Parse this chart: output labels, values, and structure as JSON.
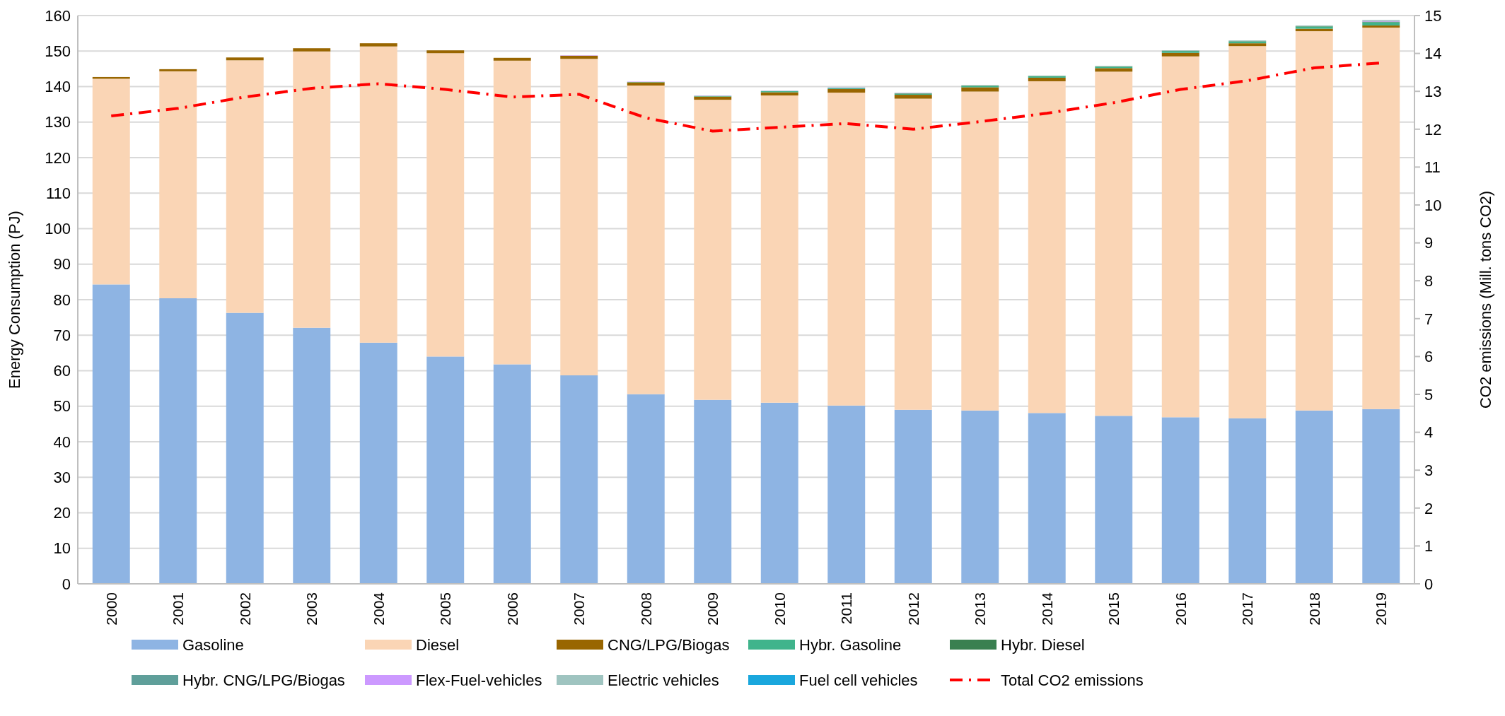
{
  "chart_data": {
    "type": "bar",
    "stacked": true,
    "ylabel": "Energy Consumption (PJ)",
    "y2label": "CO2 emissions (Mill. tons CO2)",
    "categories": [
      "2000",
      "2001",
      "2002",
      "2003",
      "2004",
      "2005",
      "2006",
      "2007",
      "2008",
      "2009",
      "2010",
      "2011",
      "2012",
      "2013",
      "2014",
      "2015",
      "2016",
      "2017",
      "2018",
      "2019"
    ],
    "series": [
      {
        "name": "Gasoline",
        "color": "#8eb4e3",
        "values": [
          84.3,
          80.4,
          76.3,
          72.1,
          67.9,
          64.0,
          61.8,
          58.7,
          53.4,
          51.8,
          51.0,
          50.2,
          49.0,
          48.8,
          48.1,
          47.3,
          46.9,
          46.6,
          48.8,
          49.2
        ]
      },
      {
        "name": "Diesel",
        "color": "#fad5b5",
        "values": [
          57.9,
          63.9,
          71.1,
          77.8,
          83.4,
          85.4,
          85.5,
          89.1,
          86.9,
          84.5,
          86.5,
          88.1,
          87.6,
          89.8,
          93.4,
          96.9,
          101.6,
          104.8,
          106.8,
          107.4
        ]
      },
      {
        "name": "CNG/LPG/Biogas",
        "color": "#996600",
        "values": [
          0.5,
          0.6,
          0.8,
          0.9,
          0.9,
          0.8,
          0.8,
          0.9,
          0.9,
          0.9,
          0.9,
          1.0,
          1.1,
          1.2,
          1.0,
          1.0,
          1.0,
          0.8,
          0.7,
          0.6
        ]
      },
      {
        "name": "Hybr. Gasoline",
        "color": "#40b48c",
        "values": [
          0,
          0,
          0,
          0,
          0,
          0,
          0,
          0,
          0.1,
          0.2,
          0.3,
          0.3,
          0.3,
          0.4,
          0.4,
          0.4,
          0.5,
          0.5,
          0.6,
          0.9
        ]
      },
      {
        "name": "Hybr. Diesel",
        "color": "#3a8050",
        "values": [
          0,
          0,
          0,
          0,
          0,
          0,
          0,
          0,
          0,
          0,
          0,
          0,
          0.1,
          0.1,
          0.1,
          0.1,
          0.1,
          0.1,
          0.1,
          0.2
        ]
      },
      {
        "name": "Hybr. CNG/LPG/Biogas",
        "color": "#5f9f9a",
        "values": [
          0,
          0,
          0,
          0,
          0,
          0,
          0,
          0,
          0,
          0,
          0,
          0,
          0,
          0,
          0,
          0,
          0,
          0,
          0,
          0
        ]
      },
      {
        "name": "Flex-Fuel-vehicles",
        "color": "#cc99ff",
        "values": [
          0,
          0,
          0,
          0,
          0,
          0,
          0,
          0.1,
          0.1,
          0.1,
          0.1,
          0.1,
          0.1,
          0,
          0,
          0,
          0,
          0,
          0,
          0.2
        ]
      },
      {
        "name": "Electric vehicles",
        "color": "#9fc4c0",
        "values": [
          0,
          0,
          0,
          0,
          0,
          0,
          0,
          0,
          0,
          0,
          0.1,
          0.1,
          0.1,
          0.1,
          0.1,
          0.1,
          0.1,
          0.2,
          0.2,
          0.3
        ]
      },
      {
        "name": "Fuel cell vehicles",
        "color": "#1aa7dd",
        "values": [
          0,
          0,
          0,
          0,
          0,
          0,
          0,
          0,
          0,
          0,
          0,
          0,
          0,
          0,
          0,
          0,
          0,
          0,
          0,
          0
        ]
      },
      {
        "name": "Total CO2 emissions",
        "type": "line",
        "axis": "y2",
        "color": "#ff0000",
        "line_style": "dashdot",
        "values": [
          12.35,
          12.55,
          12.85,
          13.08,
          13.2,
          13.05,
          12.85,
          12.92,
          12.3,
          11.95,
          12.05,
          12.15,
          12.0,
          12.2,
          12.42,
          12.7,
          13.05,
          13.28,
          13.62,
          13.75
        ]
      }
    ],
    "ylim": [
      0,
      160
    ],
    "yticks": [
      0,
      10,
      20,
      30,
      40,
      50,
      60,
      70,
      80,
      90,
      100,
      110,
      120,
      130,
      140,
      150,
      160
    ],
    "y2lim": [
      0,
      15
    ],
    "y2ticks": [
      0,
      1,
      2,
      3,
      4,
      5,
      6,
      7,
      8,
      9,
      10,
      11,
      12,
      13,
      14,
      15
    ],
    "grid": "y",
    "legend": "bottom"
  }
}
